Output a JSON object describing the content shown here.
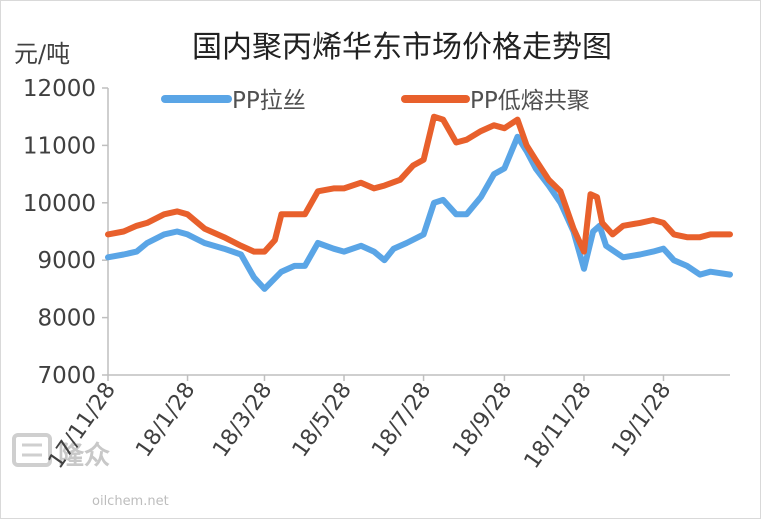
{
  "chart_data": {
    "type": "line",
    "title": "国内聚丙烯华东市场价格走势图",
    "ylabel": "元/吨",
    "ylim": [
      7000,
      12000
    ],
    "yticks": [
      7000,
      8000,
      9000,
      10000,
      11000,
      12000
    ],
    "xticks": [
      "17/11/28",
      "18/1/28",
      "18/3/28",
      "18/5/28",
      "18/7/28",
      "18/9/28",
      "18/11/28",
      "19/1/28"
    ],
    "xrange": [
      "2017-11-28",
      "2019-03-20"
    ],
    "legend_position": "top",
    "grid": false,
    "series": [
      {
        "name": "PP拉丝",
        "color": "#5aa5e6",
        "points": [
          [
            "2017-11-28",
            9050
          ],
          [
            "2017-12-10",
            9100
          ],
          [
            "2017-12-20",
            9150
          ],
          [
            "2017-12-28",
            9300
          ],
          [
            "2018-01-10",
            9450
          ],
          [
            "2018-01-20",
            9500
          ],
          [
            "2018-01-28",
            9450
          ],
          [
            "2018-02-10",
            9300
          ],
          [
            "2018-02-25",
            9200
          ],
          [
            "2018-03-10",
            9100
          ],
          [
            "2018-03-20",
            8700
          ],
          [
            "2018-03-28",
            8500
          ],
          [
            "2018-04-10",
            8800
          ],
          [
            "2018-04-20",
            8900
          ],
          [
            "2018-04-28",
            8900
          ],
          [
            "2018-05-08",
            9300
          ],
          [
            "2018-05-20",
            9200
          ],
          [
            "2018-05-28",
            9150
          ],
          [
            "2018-06-10",
            9250
          ],
          [
            "2018-06-20",
            9150
          ],
          [
            "2018-06-28",
            9000
          ],
          [
            "2018-07-05",
            9200
          ],
          [
            "2018-07-15",
            9300
          ],
          [
            "2018-07-28",
            9450
          ],
          [
            "2018-08-05",
            10000
          ],
          [
            "2018-08-12",
            10050
          ],
          [
            "2018-08-22",
            9800
          ],
          [
            "2018-08-30",
            9800
          ],
          [
            "2018-09-10",
            10100
          ],
          [
            "2018-09-20",
            10500
          ],
          [
            "2018-09-28",
            10600
          ],
          [
            "2018-10-08",
            11150
          ],
          [
            "2018-10-15",
            10900
          ],
          [
            "2018-10-22",
            10600
          ],
          [
            "2018-11-01",
            10300
          ],
          [
            "2018-11-10",
            10000
          ],
          [
            "2018-11-20",
            9500
          ],
          [
            "2018-11-28",
            8850
          ],
          [
            "2018-12-05",
            9500
          ],
          [
            "2018-12-10",
            9600
          ],
          [
            "2018-12-15",
            9250
          ],
          [
            "2018-12-28",
            9050
          ],
          [
            "2019-01-10",
            9100
          ],
          [
            "2019-01-20",
            9150
          ],
          [
            "2019-01-28",
            9200
          ],
          [
            "2019-02-05",
            9000
          ],
          [
            "2019-02-15",
            8900
          ],
          [
            "2019-02-25",
            8750
          ],
          [
            "2019-03-05",
            8800
          ],
          [
            "2019-03-20",
            8750
          ]
        ]
      },
      {
        "name": "PP低熔共聚",
        "color": "#e8602c",
        "points": [
          [
            "2017-11-28",
            9450
          ],
          [
            "2017-12-10",
            9500
          ],
          [
            "2017-12-20",
            9600
          ],
          [
            "2017-12-28",
            9650
          ],
          [
            "2018-01-10",
            9800
          ],
          [
            "2018-01-20",
            9850
          ],
          [
            "2018-01-28",
            9800
          ],
          [
            "2018-02-10",
            9550
          ],
          [
            "2018-02-25",
            9400
          ],
          [
            "2018-03-10",
            9250
          ],
          [
            "2018-03-20",
            9150
          ],
          [
            "2018-03-28",
            9150
          ],
          [
            "2018-04-05",
            9350
          ],
          [
            "2018-04-10",
            9800
          ],
          [
            "2018-04-20",
            9800
          ],
          [
            "2018-04-28",
            9800
          ],
          [
            "2018-05-08",
            10200
          ],
          [
            "2018-05-20",
            10250
          ],
          [
            "2018-05-28",
            10250
          ],
          [
            "2018-06-10",
            10350
          ],
          [
            "2018-06-20",
            10250
          ],
          [
            "2018-06-28",
            10300
          ],
          [
            "2018-07-10",
            10400
          ],
          [
            "2018-07-20",
            10650
          ],
          [
            "2018-07-28",
            10750
          ],
          [
            "2018-08-05",
            11500
          ],
          [
            "2018-08-12",
            11450
          ],
          [
            "2018-08-22",
            11050
          ],
          [
            "2018-08-30",
            11100
          ],
          [
            "2018-09-10",
            11250
          ],
          [
            "2018-09-20",
            11350
          ],
          [
            "2018-09-28",
            11300
          ],
          [
            "2018-10-08",
            11450
          ],
          [
            "2018-10-15",
            11000
          ],
          [
            "2018-10-22",
            10750
          ],
          [
            "2018-11-01",
            10400
          ],
          [
            "2018-11-10",
            10200
          ],
          [
            "2018-11-20",
            9550
          ],
          [
            "2018-11-28",
            9150
          ],
          [
            "2018-12-03",
            10150
          ],
          [
            "2018-12-08",
            10100
          ],
          [
            "2018-12-12",
            9650
          ],
          [
            "2018-12-20",
            9450
          ],
          [
            "2018-12-28",
            9600
          ],
          [
            "2019-01-10",
            9650
          ],
          [
            "2019-01-20",
            9700
          ],
          [
            "2019-01-28",
            9650
          ],
          [
            "2019-02-05",
            9450
          ],
          [
            "2019-02-15",
            9400
          ],
          [
            "2019-02-25",
            9400
          ],
          [
            "2019-03-05",
            9450
          ],
          [
            "2019-03-20",
            9450
          ]
        ]
      }
    ]
  },
  "watermark": {
    "logo_text": "隆众",
    "url": "oilchem.net"
  }
}
